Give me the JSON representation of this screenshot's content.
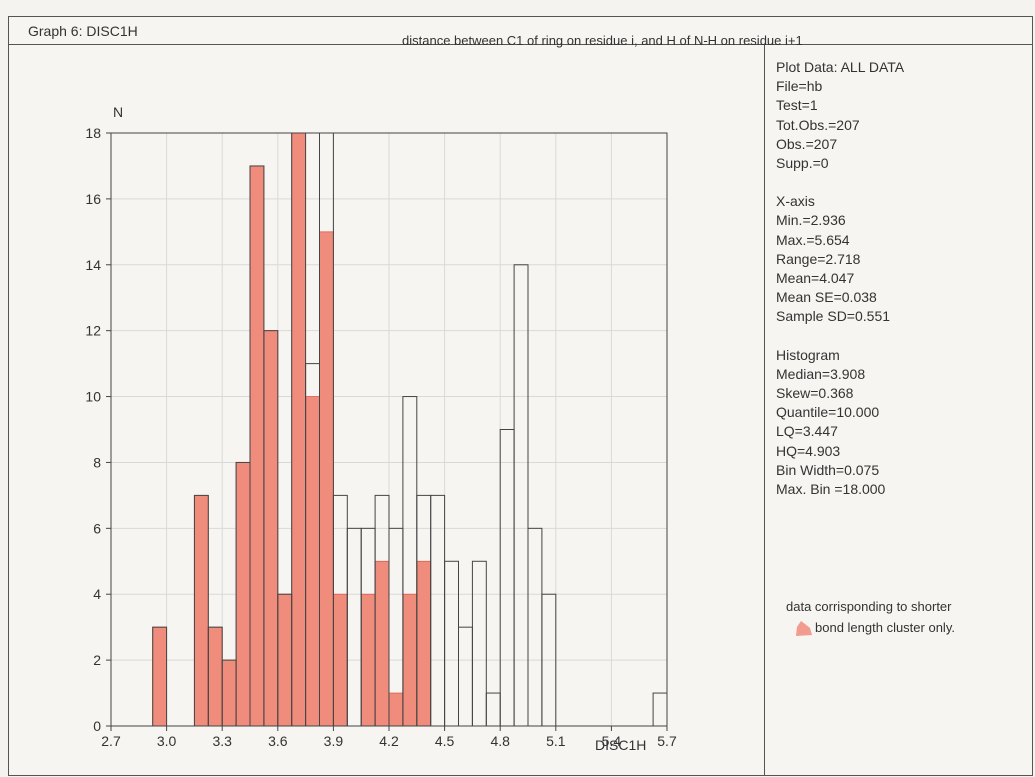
{
  "header": {
    "graph_title": "Graph 6: DISC1H",
    "subtitle": "distance between C1 of ring on residue i, and H of N-H on residue i+1"
  },
  "stats_panel": {
    "plot_data": [
      "Plot Data: ALL DATA",
      "File=hb",
      "Test=1",
      "Tot.Obs.=207",
      "Obs.=207",
      "Supp.=0"
    ],
    "x_axis": [
      "X-axis",
      "Min.=2.936",
      "Max.=5.654",
      "Range=2.718",
      "Mean=4.047",
      "Mean SE=0.038",
      "Sample SD=0.551"
    ],
    "histogram": [
      "Histogram",
      "Median=3.908",
      "Skew=0.368",
      "Quantile=10.000",
      "LQ=3.447",
      "HQ=4.903",
      "Bin Width=0.075",
      "Max. Bin =18.000"
    ]
  },
  "legend": {
    "line1": "data corrisponding to shorter",
    "line2": "bond length cluster only.",
    "swatch_color": "#f08c7c"
  },
  "colors": {
    "fill": "#f08c7c",
    "outline": "#444444",
    "grid": "#d9d9d9"
  },
  "chart_data": {
    "type": "bar",
    "title": "",
    "xlabel": "DISC1H",
    "ylabel": "N",
    "xlim": [
      2.7,
      5.7
    ],
    "ylim": [
      0,
      18
    ],
    "xticks": [
      "2.7",
      "3.0",
      "3.3",
      "3.6",
      "3.9",
      "4.2",
      "4.5",
      "4.8",
      "5.1",
      "5.4",
      "5.7"
    ],
    "yticks": [
      "0",
      "2",
      "4",
      "6",
      "8",
      "10",
      "12",
      "14",
      "16",
      "18"
    ],
    "bin_width": 0.075,
    "grid": true,
    "series": [
      {
        "name": "ALL DATA",
        "style": "outline",
        "bins": [
          {
            "x": 2.9625,
            "y": 3
          },
          {
            "x": 3.1875,
            "y": 7
          },
          {
            "x": 3.2625,
            "y": 3
          },
          {
            "x": 3.3375,
            "y": 2
          },
          {
            "x": 3.4125,
            "y": 8
          },
          {
            "x": 3.4875,
            "y": 17
          },
          {
            "x": 3.5625,
            "y": 12
          },
          {
            "x": 3.6375,
            "y": 4
          },
          {
            "x": 3.7125,
            "y": 18
          },
          {
            "x": 3.7875,
            "y": 11
          },
          {
            "x": 3.8625,
            "y": 18
          },
          {
            "x": 3.9375,
            "y": 7
          },
          {
            "x": 4.0125,
            "y": 6
          },
          {
            "x": 4.0875,
            "y": 6
          },
          {
            "x": 4.1625,
            "y": 7
          },
          {
            "x": 4.2375,
            "y": 6
          },
          {
            "x": 4.3125,
            "y": 10
          },
          {
            "x": 4.3875,
            "y": 7
          },
          {
            "x": 4.4625,
            "y": 7
          },
          {
            "x": 4.5375,
            "y": 5
          },
          {
            "x": 4.6125,
            "y": 3
          },
          {
            "x": 4.6875,
            "y": 5
          },
          {
            "x": 4.7625,
            "y": 1
          },
          {
            "x": 4.8375,
            "y": 9
          },
          {
            "x": 4.9125,
            "y": 14
          },
          {
            "x": 4.9875,
            "y": 6
          },
          {
            "x": 5.0625,
            "y": 4
          },
          {
            "x": 5.6625,
            "y": 1
          }
        ]
      },
      {
        "name": "shorter bond length cluster",
        "style": "filled",
        "bins": [
          {
            "x": 2.9625,
            "y": 3
          },
          {
            "x": 3.1875,
            "y": 7
          },
          {
            "x": 3.2625,
            "y": 3
          },
          {
            "x": 3.3375,
            "y": 2
          },
          {
            "x": 3.4125,
            "y": 8
          },
          {
            "x": 3.4875,
            "y": 17
          },
          {
            "x": 3.5625,
            "y": 12
          },
          {
            "x": 3.6375,
            "y": 4
          },
          {
            "x": 3.7125,
            "y": 18
          },
          {
            "x": 3.7875,
            "y": 10
          },
          {
            "x": 3.8625,
            "y": 15
          },
          {
            "x": 3.9375,
            "y": 4
          },
          {
            "x": 4.0875,
            "y": 4
          },
          {
            "x": 4.1625,
            "y": 5
          },
          {
            "x": 4.2375,
            "y": 1
          },
          {
            "x": 4.3125,
            "y": 4
          },
          {
            "x": 4.3875,
            "y": 5
          }
        ]
      }
    ]
  }
}
